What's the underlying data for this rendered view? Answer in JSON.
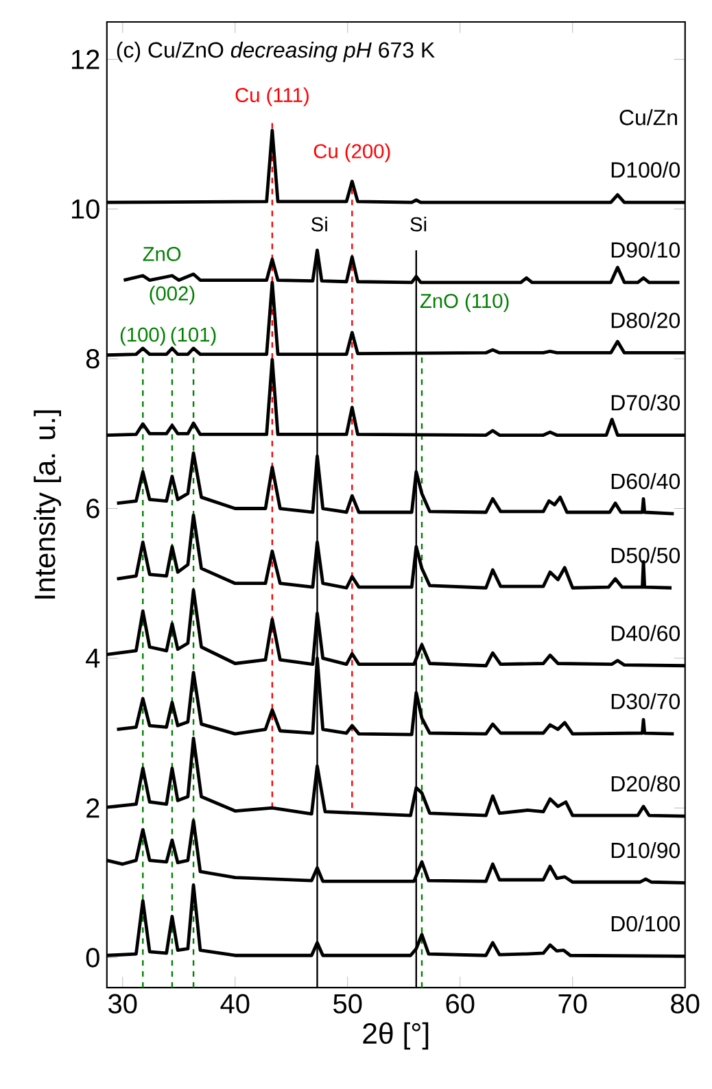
{
  "chart_data": {
    "type": "line",
    "title": "(c)  Cu/ZnO *decreasing pH* 673 K",
    "xlabel": "2θ [°]",
    "ylabel": "Intensity  [a. u.]",
    "legend_title": "Cu/Zn",
    "xlim": [
      28.6,
      80
    ],
    "ylim": [
      -0.4,
      12.5
    ],
    "xticks": [
      30,
      40,
      50,
      60,
      70,
      80
    ],
    "yticks": [
      0,
      2,
      4,
      6,
      8,
      10,
      12
    ],
    "annotations": [
      "ZnO",
      "(002)",
      "(100)",
      "(101)"
    ],
    "ref_lines": [
      {
        "axis": "x",
        "value": 43.3,
        "label": "Cu (111)",
        "color": "#ff0000",
        "line_style": "dashed"
      },
      {
        "axis": "x",
        "value": 50.4,
        "label": "Cu (200)",
        "color": "#ff0000",
        "line_style": "dashed"
      },
      {
        "axis": "x",
        "value": 47.3,
        "label": "Si",
        "color": "#000000",
        "line_style": "solid"
      },
      {
        "axis": "x",
        "value": 56.1,
        "label": "Si",
        "color": "#000000",
        "line_style": "solid"
      },
      {
        "axis": "x",
        "value": 31.8,
        "color": "#008000",
        "line_style": "dashed"
      },
      {
        "axis": "x",
        "value": 34.4,
        "color": "#008000",
        "line_style": "dashed"
      },
      {
        "axis": "x",
        "value": 36.3,
        "color": "#008000",
        "line_style": "dashed"
      },
      {
        "axis": "x",
        "value": 56.6,
        "label": "ZnO (110)",
        "color": "#008000",
        "line_style": "dashed"
      }
    ],
    "series": [
      {
        "name": "D100/0",
        "color": "#000000",
        "x": [
          28.6,
          42.8,
          43.3,
          43.8,
          49.9,
          50.4,
          50.9,
          55.7,
          56.1,
          56.5,
          73.4,
          74,
          74.6,
          80
        ],
        "values": [
          10.09,
          10.1,
          11.05,
          10.1,
          10.1,
          10.37,
          10.1,
          10.09,
          10.12,
          10.09,
          10.09,
          10.19,
          10.09,
          10.09
        ]
      },
      {
        "name": "D90/10",
        "color": "#000000",
        "x": [
          30.1,
          31.8,
          32.4,
          34.4,
          35,
          36.3,
          36.9,
          42.8,
          43.3,
          43.8,
          46.9,
          47.3,
          47.7,
          49.9,
          50.4,
          50.9,
          55.7,
          56.1,
          56.5,
          65.4,
          65.9,
          66.4,
          73.4,
          74,
          74.6,
          75.8,
          76.3,
          76.8,
          79.5
        ],
        "values": [
          9.05,
          9.11,
          9.05,
          9.11,
          9.05,
          9.13,
          9.05,
          9.05,
          9.33,
          9.05,
          9.04,
          9.45,
          9.04,
          9.03,
          9.36,
          9.03,
          9.02,
          9.1,
          9.02,
          9.02,
          9.08,
          9.02,
          9.02,
          9.22,
          9.02,
          9.02,
          9.08,
          9.02,
          9.02
        ]
      },
      {
        "name": "D80/20",
        "color": "#000000",
        "x": [
          28.6,
          31.2,
          31.8,
          32.4,
          33.9,
          34.4,
          34.9,
          35.8,
          36.3,
          36.9,
          42.8,
          43.3,
          43.8,
          49.9,
          50.4,
          50.9,
          62.3,
          62.9,
          63.5,
          67.4,
          68.0,
          68.6,
          73.4,
          74,
          74.6,
          80
        ],
        "values": [
          8.05,
          8.06,
          8.14,
          8.06,
          8.06,
          8.14,
          8.06,
          8.06,
          8.14,
          8.06,
          8.06,
          9.02,
          8.06,
          8.06,
          8.35,
          8.07,
          8.08,
          8.12,
          8.08,
          8.08,
          8.1,
          8.08,
          8.08,
          8.23,
          8.08,
          8.08
        ]
      },
      {
        "name": "D70/30",
        "color": "#000000",
        "x": [
          28.6,
          31.2,
          31.8,
          32.4,
          33.9,
          34.4,
          34.9,
          35.8,
          36.3,
          36.9,
          42.8,
          43.3,
          43.8,
          49.9,
          50.4,
          50.9,
          62.3,
          62.9,
          63.5,
          67.4,
          68.0,
          68.6,
          73.0,
          73.5,
          74.0,
          80
        ],
        "values": [
          6.98,
          6.99,
          7.13,
          7.0,
          7.0,
          7.11,
          7.0,
          7.0,
          7.14,
          6.99,
          6.99,
          7.99,
          6.99,
          6.99,
          7.35,
          6.99,
          6.98,
          7.04,
          6.98,
          6.98,
          7.02,
          6.98,
          6.98,
          7.19,
          6.98,
          6.98
        ]
      },
      {
        "name": "D60/40",
        "color": "#000000",
        "x": [
          29.5,
          31.2,
          31.8,
          32.4,
          33.9,
          34.4,
          34.9,
          35.8,
          36.3,
          37,
          40,
          42.7,
          43.3,
          44,
          46.9,
          47.3,
          47.8,
          49.9,
          50.4,
          51,
          55.7,
          56.1,
          56.6,
          57.3,
          62.3,
          62.9,
          63.6,
          67.4,
          67.9,
          68.4,
          68.9,
          69.5,
          73.3,
          73.8,
          74.3,
          76.2,
          76.3,
          76.4,
          79
        ],
        "values": [
          6.07,
          6.1,
          6.49,
          6.12,
          6.1,
          6.43,
          6.12,
          6.2,
          6.74,
          6.15,
          6.0,
          6.0,
          6.55,
          6.0,
          5.95,
          6.7,
          6.0,
          5.95,
          6.17,
          5.95,
          5.95,
          6.49,
          6.2,
          5.96,
          5.95,
          6.13,
          5.96,
          5.96,
          6.1,
          6.05,
          6.15,
          5.95,
          5.95,
          6.07,
          5.95,
          5.95,
          6.13,
          5.95,
          5.93
        ]
      },
      {
        "name": "D50/50",
        "color": "#000000",
        "x": [
          29.5,
          31.2,
          31.8,
          32.4,
          33.9,
          34.4,
          34.9,
          35.8,
          36.3,
          37,
          40,
          42.7,
          43.3,
          44,
          46.9,
          47.3,
          47.8,
          49.9,
          50.4,
          51,
          55.7,
          56.1,
          56.6,
          57.3,
          62.3,
          62.9,
          63.6,
          67.4,
          68.0,
          68.7,
          69.3,
          70,
          73.2,
          73.8,
          74.4,
          76.2,
          76.3,
          76.4,
          78.8
        ],
        "values": [
          5.06,
          5.1,
          5.55,
          5.12,
          5.1,
          5.49,
          5.15,
          5.25,
          5.91,
          5.2,
          5.0,
          5.0,
          5.43,
          5.0,
          4.95,
          5.55,
          5.0,
          4.94,
          5.09,
          4.95,
          4.95,
          5.49,
          5.2,
          4.97,
          4.94,
          5.18,
          4.96,
          4.96,
          5.15,
          5.05,
          5.21,
          4.94,
          4.95,
          5.06,
          4.95,
          4.95,
          5.29,
          4.95,
          4.94
        ]
      },
      {
        "name": "D40/60",
        "color": "#000000",
        "x": [
          28.6,
          31.2,
          31.8,
          32.4,
          33.9,
          34.4,
          34.9,
          35.8,
          36.3,
          37,
          40,
          42.7,
          43.3,
          44,
          46.9,
          47.3,
          47.8,
          49.9,
          50.4,
          51,
          55.9,
          56.6,
          57.3,
          62.3,
          62.9,
          63.6,
          67.4,
          68.0,
          68.7,
          73.5,
          74,
          74.6,
          80
        ],
        "values": [
          4.05,
          4.1,
          4.63,
          4.15,
          4.1,
          4.46,
          4.12,
          4.2,
          4.91,
          4.15,
          3.93,
          3.98,
          4.52,
          3.98,
          3.92,
          4.6,
          4.0,
          3.92,
          4.06,
          3.92,
          3.92,
          4.18,
          3.93,
          3.9,
          4.07,
          3.92,
          3.93,
          4.04,
          3.93,
          3.92,
          3.97,
          3.91,
          3.9
        ]
      },
      {
        "name": "D30/70",
        "color": "#000000",
        "x": [
          29.5,
          31.2,
          31.8,
          32.4,
          33.9,
          34.4,
          34.9,
          35.8,
          36.3,
          37,
          40,
          42.7,
          43.3,
          44,
          46.9,
          47.3,
          47.8,
          49.9,
          50.4,
          51,
          55.7,
          56.1,
          56.6,
          57.3,
          62.3,
          62.9,
          63.6,
          67.4,
          68.0,
          68.7,
          69.3,
          70,
          76.2,
          76.3,
          76.4,
          79
        ],
        "values": [
          3.05,
          3.08,
          3.46,
          3.1,
          3.08,
          3.41,
          3.1,
          3.15,
          3.81,
          3.12,
          2.99,
          3.05,
          3.31,
          3.03,
          3.0,
          4.0,
          3.05,
          3.0,
          3.1,
          2.99,
          2.98,
          3.54,
          3.2,
          3.0,
          2.99,
          3.12,
          3.0,
          3.0,
          3.11,
          3.05,
          3.14,
          2.99,
          3.0,
          3.18,
          3.0,
          2.99
        ]
      },
      {
        "name": "D20/80",
        "color": "#000000",
        "x": [
          28.6,
          31.2,
          31.8,
          32.4,
          33.9,
          34.4,
          34.9,
          35.8,
          36.3,
          37,
          40,
          43.3,
          46.8,
          47.3,
          48,
          55.6,
          56.1,
          56.6,
          57.3,
          62.3,
          62.9,
          63.5,
          66,
          67.4,
          68.0,
          68.7,
          69.4,
          70,
          75.8,
          76.3,
          76.8,
          80
        ],
        "values": [
          2.01,
          2.05,
          2.53,
          2.08,
          2.05,
          2.53,
          2.1,
          2.15,
          2.93,
          2.15,
          1.96,
          2.0,
          1.92,
          2.56,
          1.95,
          1.9,
          2.27,
          2.2,
          1.93,
          1.9,
          2.16,
          1.93,
          1.97,
          1.95,
          2.12,
          2.02,
          2.08,
          1.9,
          1.9,
          2.02,
          1.9,
          1.89
        ]
      },
      {
        "name": "D10/90",
        "color": "#000000",
        "x": [
          28.6,
          30,
          31.2,
          31.8,
          32.4,
          33.9,
          34.4,
          34.9,
          35.8,
          36.3,
          36.9,
          40,
          46.8,
          47.3,
          47.8,
          55.9,
          56.6,
          57.2,
          62.3,
          62.9,
          63.5,
          67.4,
          68.0,
          68.6,
          69.3,
          70,
          76.0,
          76.5,
          77.0,
          80
        ],
        "values": [
          1.3,
          1.25,
          1.3,
          1.71,
          1.3,
          1.28,
          1.57,
          1.27,
          1.3,
          1.83,
          1.15,
          1.07,
          1.03,
          1.2,
          1.02,
          1.02,
          1.28,
          1.03,
          1.02,
          1.25,
          1.04,
          1.04,
          1.22,
          1.06,
          1.08,
          1.01,
          1.01,
          1.05,
          1.01,
          1.0
        ]
      },
      {
        "name": "D0/100",
        "color": "#000000",
        "x": [
          28.6,
          31.2,
          31.8,
          32.4,
          33.9,
          34.4,
          34.9,
          35.8,
          36.3,
          36.9,
          40,
          46.8,
          47.3,
          47.8,
          55.6,
          56.1,
          56.6,
          57.2,
          62.3,
          62.9,
          63.5,
          65.9,
          67.4,
          68.0,
          68.6,
          69.2,
          69.8,
          80
        ],
        "values": [
          0.03,
          0.05,
          0.76,
          0.08,
          0.06,
          0.55,
          0.1,
          0.12,
          0.97,
          0.1,
          0.03,
          0.03,
          0.2,
          0.03,
          0.03,
          0.12,
          0.31,
          0.05,
          0.03,
          0.2,
          0.04,
          0.05,
          0.06,
          0.17,
          0.09,
          0.1,
          0.03,
          0.02
        ]
      }
    ]
  }
}
